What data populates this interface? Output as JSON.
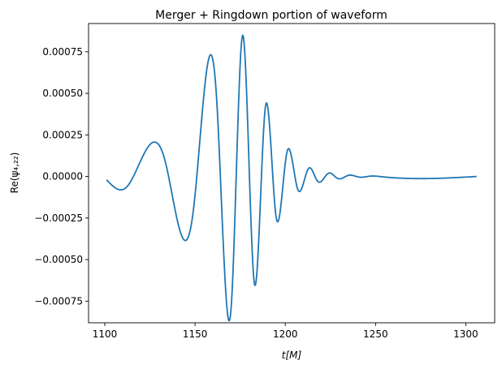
{
  "chart_data": {
    "type": "line",
    "title": "Merger + Ringdown portion of waveform",
    "xlabel": "t[M]",
    "ylabel": "Re(ψ₄,₂₂)",
    "xlim": [
      1091,
      1316
    ],
    "ylim": [
      -0.00088,
      0.00092
    ],
    "xticks": [
      1100,
      1150,
      1200,
      1250,
      1300
    ],
    "yticks": [
      -0.00075,
      -0.0005,
      -0.00025,
      0.0,
      0.00025,
      0.0005,
      0.00075
    ],
    "ytick_labels": [
      "−0.00075",
      "−0.00050",
      "−0.00025",
      "0.00000",
      "0.00025",
      "0.00050",
      "0.00075"
    ],
    "xtick_labels": [
      "1100",
      "1150",
      "1200",
      "1250",
      "1300"
    ],
    "grid": false,
    "color": "#1f77b4",
    "series": [
      {
        "points": [
          [
            1101,
            -2e-05
          ],
          [
            1112,
            -6.5e-05
          ],
          [
            1133,
            0.00011
          ],
          [
            1149,
            -0.00021
          ],
          [
            1162,
            0.00046
          ],
          [
            1170,
            -0.00079
          ],
          [
            1176.5,
            0.00085
          ],
          [
            1183,
            -0.00065
          ],
          [
            1189,
            0.00042
          ],
          [
            1195,
            -0.00025
          ],
          [
            1201,
            0.00015
          ],
          [
            1207,
            -8e-05
          ],
          [
            1213,
            5e-05
          ],
          [
            1218,
            -3e-05
          ],
          [
            1224,
            2e-05
          ],
          [
            1229,
            -1.2e-05
          ],
          [
            1235,
            7e-06
          ],
          [
            1241,
            -4e-06
          ],
          [
            1247,
            2e-06
          ],
          [
            1253,
            -1e-06
          ],
          [
            1306,
            0.0
          ]
        ]
      }
    ]
  }
}
